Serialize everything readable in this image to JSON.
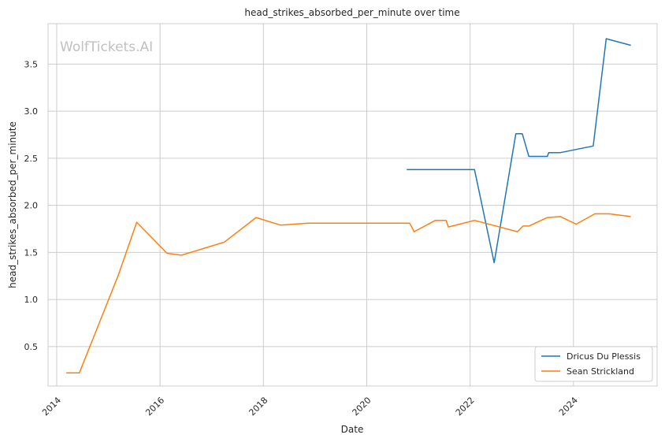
{
  "chart_data": {
    "type": "line",
    "title": "head_strikes_absorbed_per_minute over time",
    "xlabel": "Date",
    "ylabel": "head_strikes_absorbed_per_minute",
    "x_ticks": [
      "2014",
      "2016",
      "2018",
      "2020",
      "2022",
      "2024"
    ],
    "y_ticks": [
      "0.5",
      "1.0",
      "1.5",
      "2.0",
      "2.5",
      "3.0",
      "3.5"
    ],
    "xlim": [
      "2013-11-01",
      "2025-08-15"
    ],
    "ylim": [
      0.08,
      3.93
    ],
    "grid": true,
    "legend_position": "lower right",
    "watermark": "WolfTickets.AI",
    "series": [
      {
        "name": "Dricus Du Plessis",
        "color": "#1f77b4",
        "points": [
          [
            "2020-10-10",
            2.38
          ],
          [
            "2022-02-01",
            2.38
          ],
          [
            "2022-06-20",
            1.39
          ],
          [
            "2022-11-20",
            2.76
          ],
          [
            "2023-01-05",
            2.76
          ],
          [
            "2023-02-20",
            2.52
          ],
          [
            "2023-07-01",
            2.52
          ],
          [
            "2023-07-10",
            2.56
          ],
          [
            "2023-10-01",
            2.56
          ],
          [
            "2024-05-20",
            2.63
          ],
          [
            "2024-08-20",
            3.77
          ],
          [
            "2025-02-10",
            3.7
          ]
        ]
      },
      {
        "name": "Sean Strickland",
        "color": "#ff7f0e",
        "points": [
          [
            "2014-03-10",
            0.22
          ],
          [
            "2014-06-10",
            0.22
          ],
          [
            "2015-03-10",
            1.25
          ],
          [
            "2015-07-20",
            1.82
          ],
          [
            "2016-02-20",
            1.49
          ],
          [
            "2016-06-01",
            1.47
          ],
          [
            "2017-04-01",
            1.61
          ],
          [
            "2017-11-10",
            1.87
          ],
          [
            "2018-05-01",
            1.79
          ],
          [
            "2018-11-10",
            1.81
          ],
          [
            "2020-10-30",
            1.81
          ],
          [
            "2020-11-15",
            1.77
          ],
          [
            "2020-12-01",
            1.72
          ],
          [
            "2021-05-01",
            1.84
          ],
          [
            "2021-07-15",
            1.84
          ],
          [
            "2021-08-01",
            1.77
          ],
          [
            "2022-02-01",
            1.84
          ],
          [
            "2022-12-01",
            1.72
          ],
          [
            "2023-01-10",
            1.78
          ],
          [
            "2023-02-20",
            1.78
          ],
          [
            "2023-07-01",
            1.87
          ],
          [
            "2023-10-01",
            1.88
          ],
          [
            "2024-01-20",
            1.8
          ],
          [
            "2024-06-01",
            1.91
          ],
          [
            "2024-09-10",
            1.91
          ],
          [
            "2025-02-10",
            1.88
          ]
        ]
      }
    ]
  }
}
